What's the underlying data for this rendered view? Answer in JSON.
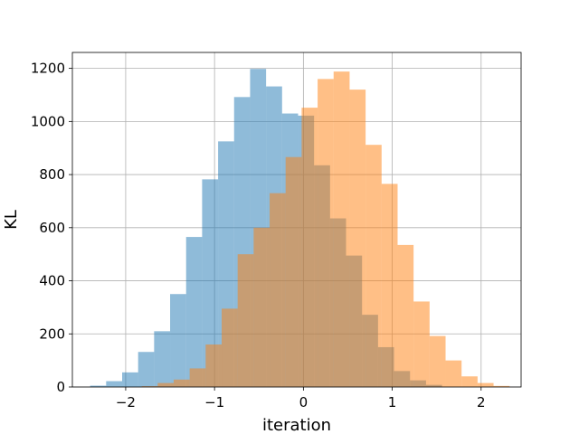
{
  "chart_data": {
    "type": "bar",
    "xlabel": "iteration",
    "ylabel": "KL",
    "xlim": [
      -2.6,
      2.45
    ],
    "ylim": [
      0,
      1260
    ],
    "xticks": [
      -2,
      -1,
      0,
      1,
      2
    ],
    "xtick_labels": [
      "−2",
      "−1",
      "0",
      "1",
      "2"
    ],
    "yticks": [
      0,
      200,
      400,
      600,
      800,
      1000,
      1200
    ],
    "ytick_labels": [
      "0",
      "200",
      "400",
      "600",
      "800",
      "1000",
      "1200"
    ],
    "grid": true,
    "legend": "none",
    "series": [
      {
        "color": "#1f77b4",
        "opacity": 0.5,
        "bins": [
          {
            "x0": -2.4,
            "x1": -2.22,
            "value": 5
          },
          {
            "x0": -2.22,
            "x1": -2.04,
            "value": 22
          },
          {
            "x0": -2.04,
            "x1": -1.86,
            "value": 55
          },
          {
            "x0": -1.86,
            "x1": -1.68,
            "value": 132
          },
          {
            "x0": -1.68,
            "x1": -1.5,
            "value": 210
          },
          {
            "x0": -1.5,
            "x1": -1.32,
            "value": 350
          },
          {
            "x0": -1.32,
            "x1": -1.14,
            "value": 565
          },
          {
            "x0": -1.14,
            "x1": -0.96,
            "value": 782
          },
          {
            "x0": -0.96,
            "x1": -0.78,
            "value": 925
          },
          {
            "x0": -0.78,
            "x1": -0.6,
            "value": 1092
          },
          {
            "x0": -0.6,
            "x1": -0.42,
            "value": 1198
          },
          {
            "x0": -0.42,
            "x1": -0.24,
            "value": 1132
          },
          {
            "x0": -0.24,
            "x1": -0.06,
            "value": 1030
          },
          {
            "x0": -0.06,
            "x1": 0.12,
            "value": 1022
          },
          {
            "x0": 0.12,
            "x1": 0.3,
            "value": 835
          },
          {
            "x0": 0.3,
            "x1": 0.48,
            "value": 635
          },
          {
            "x0": 0.48,
            "x1": 0.66,
            "value": 495
          },
          {
            "x0": 0.66,
            "x1": 0.84,
            "value": 272
          },
          {
            "x0": 0.84,
            "x1": 1.02,
            "value": 150
          },
          {
            "x0": 1.02,
            "x1": 1.2,
            "value": 60
          },
          {
            "x0": 1.2,
            "x1": 1.38,
            "value": 25
          },
          {
            "x0": 1.38,
            "x1": 1.56,
            "value": 8
          }
        ]
      },
      {
        "color": "#ff7f0e",
        "opacity": 0.5,
        "bins": [
          {
            "x0": -1.82,
            "x1": -1.64,
            "value": 3
          },
          {
            "x0": -1.64,
            "x1": -1.46,
            "value": 15
          },
          {
            "x0": -1.46,
            "x1": -1.28,
            "value": 28
          },
          {
            "x0": -1.28,
            "x1": -1.1,
            "value": 70
          },
          {
            "x0": -1.1,
            "x1": -0.92,
            "value": 160
          },
          {
            "x0": -0.92,
            "x1": -0.74,
            "value": 295
          },
          {
            "x0": -0.74,
            "x1": -0.56,
            "value": 500
          },
          {
            "x0": -0.56,
            "x1": -0.38,
            "value": 600
          },
          {
            "x0": -0.38,
            "x1": -0.2,
            "value": 730
          },
          {
            "x0": -0.2,
            "x1": -0.02,
            "value": 866
          },
          {
            "x0": -0.02,
            "x1": 0.16,
            "value": 1052
          },
          {
            "x0": 0.16,
            "x1": 0.34,
            "value": 1160
          },
          {
            "x0": 0.34,
            "x1": 0.52,
            "value": 1188
          },
          {
            "x0": 0.52,
            "x1": 0.7,
            "value": 1120
          },
          {
            "x0": 0.7,
            "x1": 0.88,
            "value": 912
          },
          {
            "x0": 0.88,
            "x1": 1.06,
            "value": 765
          },
          {
            "x0": 1.06,
            "x1": 1.24,
            "value": 535
          },
          {
            "x0": 1.24,
            "x1": 1.42,
            "value": 322
          },
          {
            "x0": 1.42,
            "x1": 1.6,
            "value": 192
          },
          {
            "x0": 1.6,
            "x1": 1.78,
            "value": 100
          },
          {
            "x0": 1.78,
            "x1": 1.96,
            "value": 40
          },
          {
            "x0": 1.96,
            "x1": 2.14,
            "value": 15
          },
          {
            "x0": 2.14,
            "x1": 2.32,
            "value": 4
          }
        ]
      }
    ]
  }
}
